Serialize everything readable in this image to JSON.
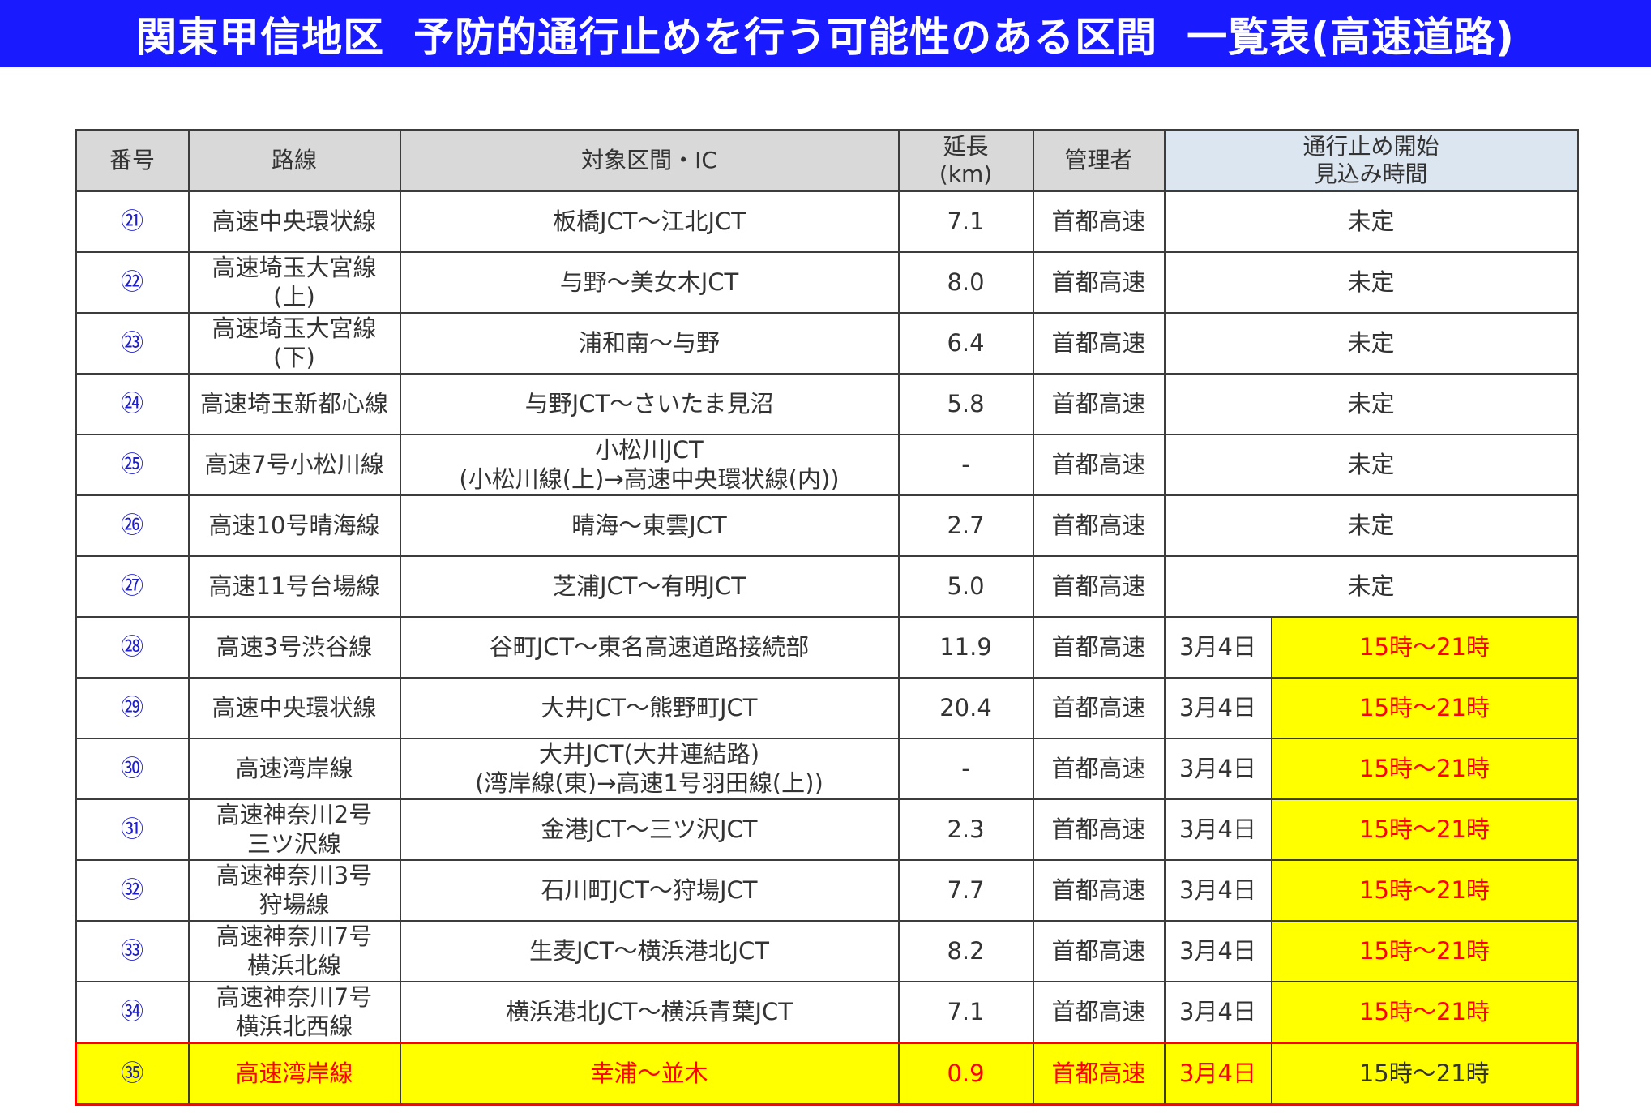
{
  "title": {
    "part1": "関東甲信地区",
    "part2": "予防的通行止めを行う可能性のある区間",
    "part3": "一覧表(高速道路)"
  },
  "headers": {
    "number": "番号",
    "route": "路線",
    "section": "対象区間・IC",
    "length_line1": "延長",
    "length_line2": "(km)",
    "manager": "管理者",
    "start_line1": "通行止め開始",
    "start_line2": "見込み時間"
  },
  "rows": [
    {
      "num": "㉑",
      "route": [
        "高速中央環状線"
      ],
      "section": [
        "板橋JCT〜江北JCT"
      ],
      "length": "7.1",
      "manager": "首都高速",
      "date": "",
      "time": "未定"
    },
    {
      "num": "㉒",
      "route": [
        "高速埼玉大宮線",
        "(上)"
      ],
      "section": [
        "与野〜美女木JCT"
      ],
      "length": "8.0",
      "manager": "首都高速",
      "date": "",
      "time": "未定"
    },
    {
      "num": "㉓",
      "route": [
        "高速埼玉大宮線",
        "(下)"
      ],
      "section": [
        "浦和南〜与野"
      ],
      "length": "6.4",
      "manager": "首都高速",
      "date": "",
      "time": "未定"
    },
    {
      "num": "㉔",
      "route": [
        "高速埼玉新都心線"
      ],
      "section": [
        "与野JCT〜さいたま見沼"
      ],
      "length": "5.8",
      "manager": "首都高速",
      "date": "",
      "time": "未定"
    },
    {
      "num": "㉕",
      "route": [
        "高速7号小松川線"
      ],
      "section": [
        "小松川JCT",
        "(小松川線(上)→高速中央環状線(内))"
      ],
      "length": "-",
      "manager": "首都高速",
      "date": "",
      "time": "未定"
    },
    {
      "num": "㉖",
      "route": [
        "高速10号晴海線"
      ],
      "section": [
        "晴海〜東雲JCT"
      ],
      "length": "2.7",
      "manager": "首都高速",
      "date": "",
      "time": "未定"
    },
    {
      "num": "㉗",
      "route": [
        "高速11号台場線"
      ],
      "section": [
        "芝浦JCT〜有明JCT"
      ],
      "length": "5.0",
      "manager": "首都高速",
      "date": "",
      "time": "未定"
    },
    {
      "num": "㉘",
      "route": [
        "高速3号渋谷線"
      ],
      "section": [
        "谷町JCT〜東名高速道路接続部"
      ],
      "length": "11.9",
      "manager": "首都高速",
      "date": "3月4日",
      "time": "15時〜21時"
    },
    {
      "num": "㉙",
      "route": [
        "高速中央環状線"
      ],
      "section": [
        "大井JCT〜熊野町JCT"
      ],
      "length": "20.4",
      "manager": "首都高速",
      "date": "3月4日",
      "time": "15時〜21時"
    },
    {
      "num": "㉚",
      "route": [
        "高速湾岸線"
      ],
      "section": [
        "大井JCT(大井連結路)",
        "(湾岸線(東)→高速1号羽田線(上))"
      ],
      "length": "-",
      "manager": "首都高速",
      "date": "3月4日",
      "time": "15時〜21時"
    },
    {
      "num": "㉛",
      "route": [
        "高速神奈川2号",
        "三ツ沢線"
      ],
      "section": [
        "金港JCT〜三ツ沢JCT"
      ],
      "length": "2.3",
      "manager": "首都高速",
      "date": "3月4日",
      "time": "15時〜21時"
    },
    {
      "num": "㉜",
      "route": [
        "高速神奈川3号",
        "狩場線"
      ],
      "section": [
        "石川町JCT〜狩場JCT"
      ],
      "length": "7.7",
      "manager": "首都高速",
      "date": "3月4日",
      "time": "15時〜21時"
    },
    {
      "num": "㉝",
      "route": [
        "高速神奈川7号",
        "横浜北線"
      ],
      "section": [
        "生麦JCT〜横浜港北JCT"
      ],
      "length": "8.2",
      "manager": "首都高速",
      "date": "3月4日",
      "time": "15時〜21時"
    },
    {
      "num": "㉞",
      "route": [
        "高速神奈川7号",
        "横浜北西線"
      ],
      "section": [
        "横浜港北JCT〜横浜青葉JCT"
      ],
      "length": "7.1",
      "manager": "首都高速",
      "date": "3月4日",
      "time": "15時〜21時"
    },
    {
      "num": "㉟",
      "route": [
        "高速湾岸線"
      ],
      "section": [
        "幸浦〜並木"
      ],
      "length": "0.9",
      "manager": "首都高速",
      "date": "3月4日",
      "time": "15時〜21時",
      "highlight_row": true
    }
  ],
  "colors": {
    "banner": "#1a1aff",
    "header_bg": "#d9d9d9",
    "header_open_bg": "#dce6f1",
    "highlight_bg": "#ffff00",
    "highlight_text": "#ff0000",
    "number_text": "#1f1fcc"
  }
}
